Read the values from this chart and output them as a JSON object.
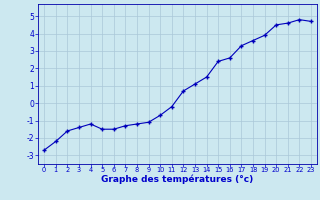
{
  "x": [
    0,
    1,
    2,
    3,
    4,
    5,
    6,
    7,
    8,
    9,
    10,
    11,
    12,
    13,
    14,
    15,
    16,
    17,
    18,
    19,
    20,
    21,
    22,
    23
  ],
  "y": [
    -2.7,
    -2.2,
    -1.6,
    -1.4,
    -1.2,
    -1.5,
    -1.5,
    -1.3,
    -1.2,
    -1.1,
    -0.7,
    -0.2,
    0.7,
    1.1,
    1.5,
    2.4,
    2.6,
    3.3,
    3.6,
    3.9,
    4.5,
    4.6,
    4.8,
    4.7
  ],
  "xlabel": "Graphe des températures (°c)",
  "xlim": [
    -0.5,
    23.5
  ],
  "ylim": [
    -3.5,
    5.7
  ],
  "yticks": [
    -3,
    -2,
    -1,
    0,
    1,
    2,
    3,
    4,
    5
  ],
  "xticks": [
    0,
    1,
    2,
    3,
    4,
    5,
    6,
    7,
    8,
    9,
    10,
    11,
    12,
    13,
    14,
    15,
    16,
    17,
    18,
    19,
    20,
    21,
    22,
    23
  ],
  "line_color": "#0000bb",
  "marker": "+",
  "bg_color": "#cce8f0",
  "grid_color": "#aac8d8",
  "label_color": "#0000cc",
  "axis_color": "#0000aa"
}
